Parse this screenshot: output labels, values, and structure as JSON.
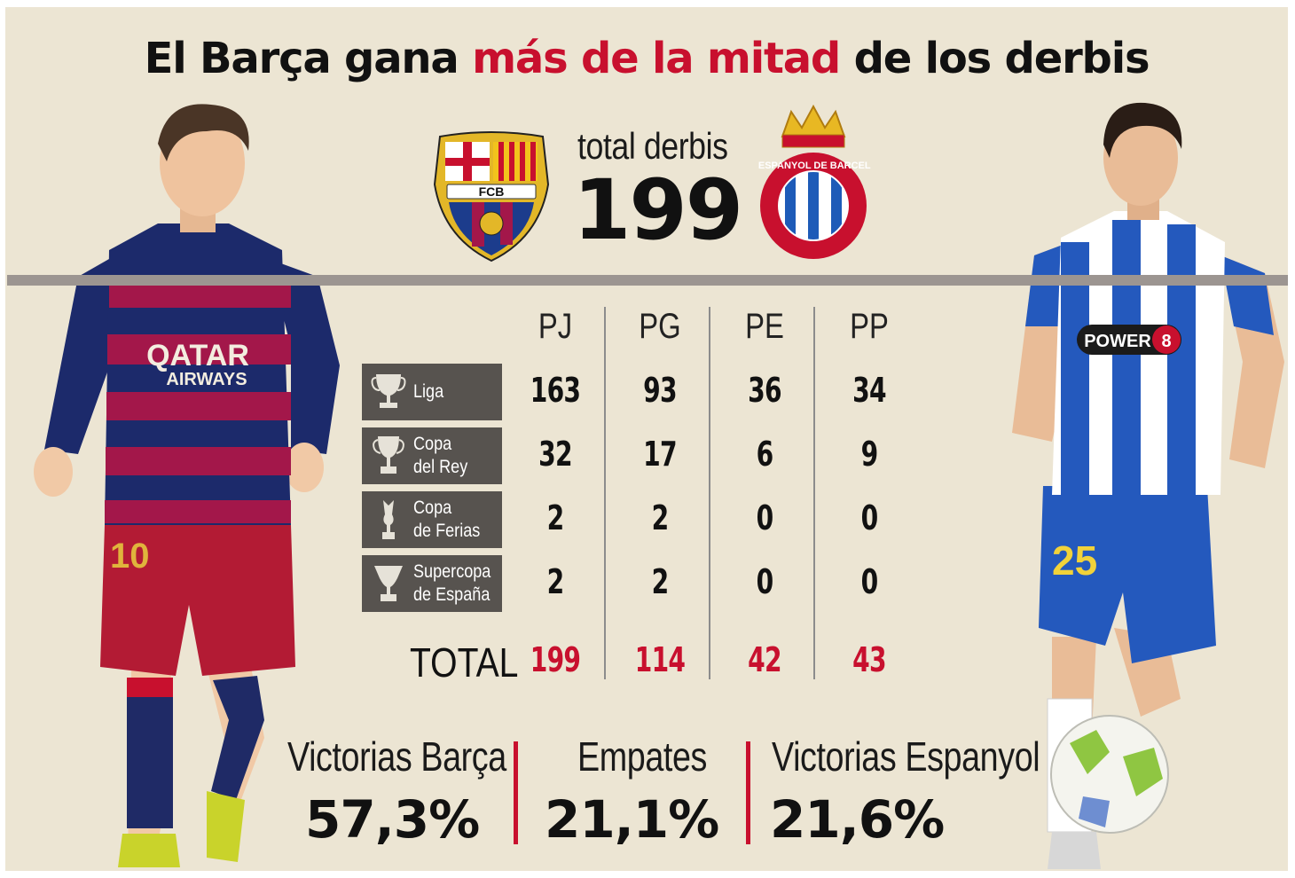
{
  "title": {
    "part1": "El Barça gana ",
    "highlight": "más de la mitad",
    "part2": " de los derbis"
  },
  "header": {
    "total_label": "total derbis",
    "total_value": "199",
    "left_crest": "FC Barcelona crest",
    "left_crest_text": "FCB",
    "right_crest": "RCD Espanyol crest",
    "right_crest_text": "RCD ESPANYOL DE BARCELONA"
  },
  "table": {
    "columns": [
      "PJ",
      "PG",
      "PE",
      "PP"
    ],
    "rows": [
      {
        "label": "Liga",
        "icon": "trophy-cup-icon",
        "values": [
          "163",
          "93",
          "36",
          "34"
        ]
      },
      {
        "label": "Copa\ndel Rey",
        "icon": "trophy-copa-icon",
        "values": [
          "32",
          "17",
          "6",
          "9"
        ]
      },
      {
        "label": "Copa\nde Ferias",
        "icon": "trophy-ferias-icon",
        "values": [
          "2",
          "2",
          "0",
          "0"
        ]
      },
      {
        "label": "Supercopa\nde España",
        "icon": "trophy-supercopa-icon",
        "values": [
          "2",
          "2",
          "0",
          "0"
        ]
      }
    ],
    "total_label": "TOTAL",
    "total_values": [
      "199",
      "114",
      "42",
      "43"
    ]
  },
  "stats": [
    {
      "label": "Victorias Barça",
      "value": "57,3%"
    },
    {
      "label": "Empates",
      "value": "21,1%"
    },
    {
      "label": "Victorias Espanyol",
      "value": "21,6%"
    }
  ],
  "players": {
    "left": {
      "shirt_text": "QATAR AIRWAYS",
      "number": "10"
    },
    "right": {
      "shirt_text": "POWER 8",
      "number": "25"
    }
  },
  "colors": {
    "background": "#ece5d3",
    "accent_red": "#c8102e",
    "label_box": "#57534f",
    "barca_blue": "#1c2a6b",
    "barca_red": "#a3174a",
    "espanyol_blue": "#1e5bb8"
  }
}
